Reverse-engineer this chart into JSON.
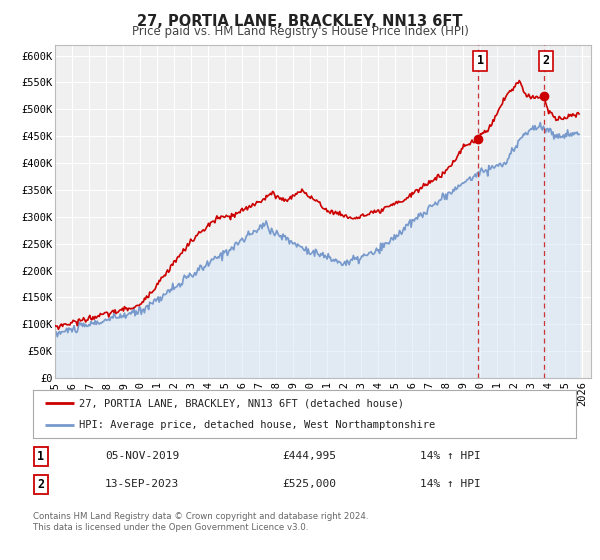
{
  "title": "27, PORTIA LANE, BRACKLEY, NN13 6FT",
  "subtitle": "Price paid vs. HM Land Registry's House Price Index (HPI)",
  "ylim": [
    0,
    620000
  ],
  "xlim_start": 1995.0,
  "xlim_end": 2026.5,
  "yticks": [
    0,
    50000,
    100000,
    150000,
    200000,
    250000,
    300000,
    350000,
    400000,
    450000,
    500000,
    550000,
    600000
  ],
  "ytick_labels": [
    "£0",
    "£50K",
    "£100K",
    "£150K",
    "£200K",
    "£250K",
    "£300K",
    "£350K",
    "£400K",
    "£450K",
    "£500K",
    "£550K",
    "£600K"
  ],
  "xticks": [
    1995,
    1996,
    1997,
    1998,
    1999,
    2000,
    2001,
    2002,
    2003,
    2004,
    2005,
    2006,
    2007,
    2008,
    2009,
    2010,
    2011,
    2012,
    2013,
    2014,
    2015,
    2016,
    2017,
    2018,
    2019,
    2020,
    2021,
    2022,
    2023,
    2024,
    2025,
    2026
  ],
  "red_line_color": "#cc0000",
  "blue_line_color": "#7799cc",
  "blue_fill_color": "#d0e4f5",
  "vline_color": "#cc3333",
  "annotation_box_color": "#cc0000",
  "legend_label1": "27, PORTIA LANE, BRACKLEY, NN13 6FT (detached house)",
  "legend_label2": "HPI: Average price, detached house, West Northamptonshire",
  "event1_x": 2019.84,
  "event1_y": 444995,
  "event1_label": "1",
  "event1_date": "05-NOV-2019",
  "event1_price": "£444,995",
  "event1_hpi": "14% ↑ HPI",
  "event2_x": 2023.71,
  "event2_y": 525000,
  "event2_label": "2",
  "event2_date": "13-SEP-2023",
  "event2_price": "£525,000",
  "event2_hpi": "14% ↑ HPI",
  "footer": "Contains HM Land Registry data © Crown copyright and database right 2024.\nThis data is licensed under the Open Government Licence v3.0.",
  "background_color": "#ffffff",
  "plot_bg_color": "#f0f0f0",
  "grid_color": "#ffffff"
}
